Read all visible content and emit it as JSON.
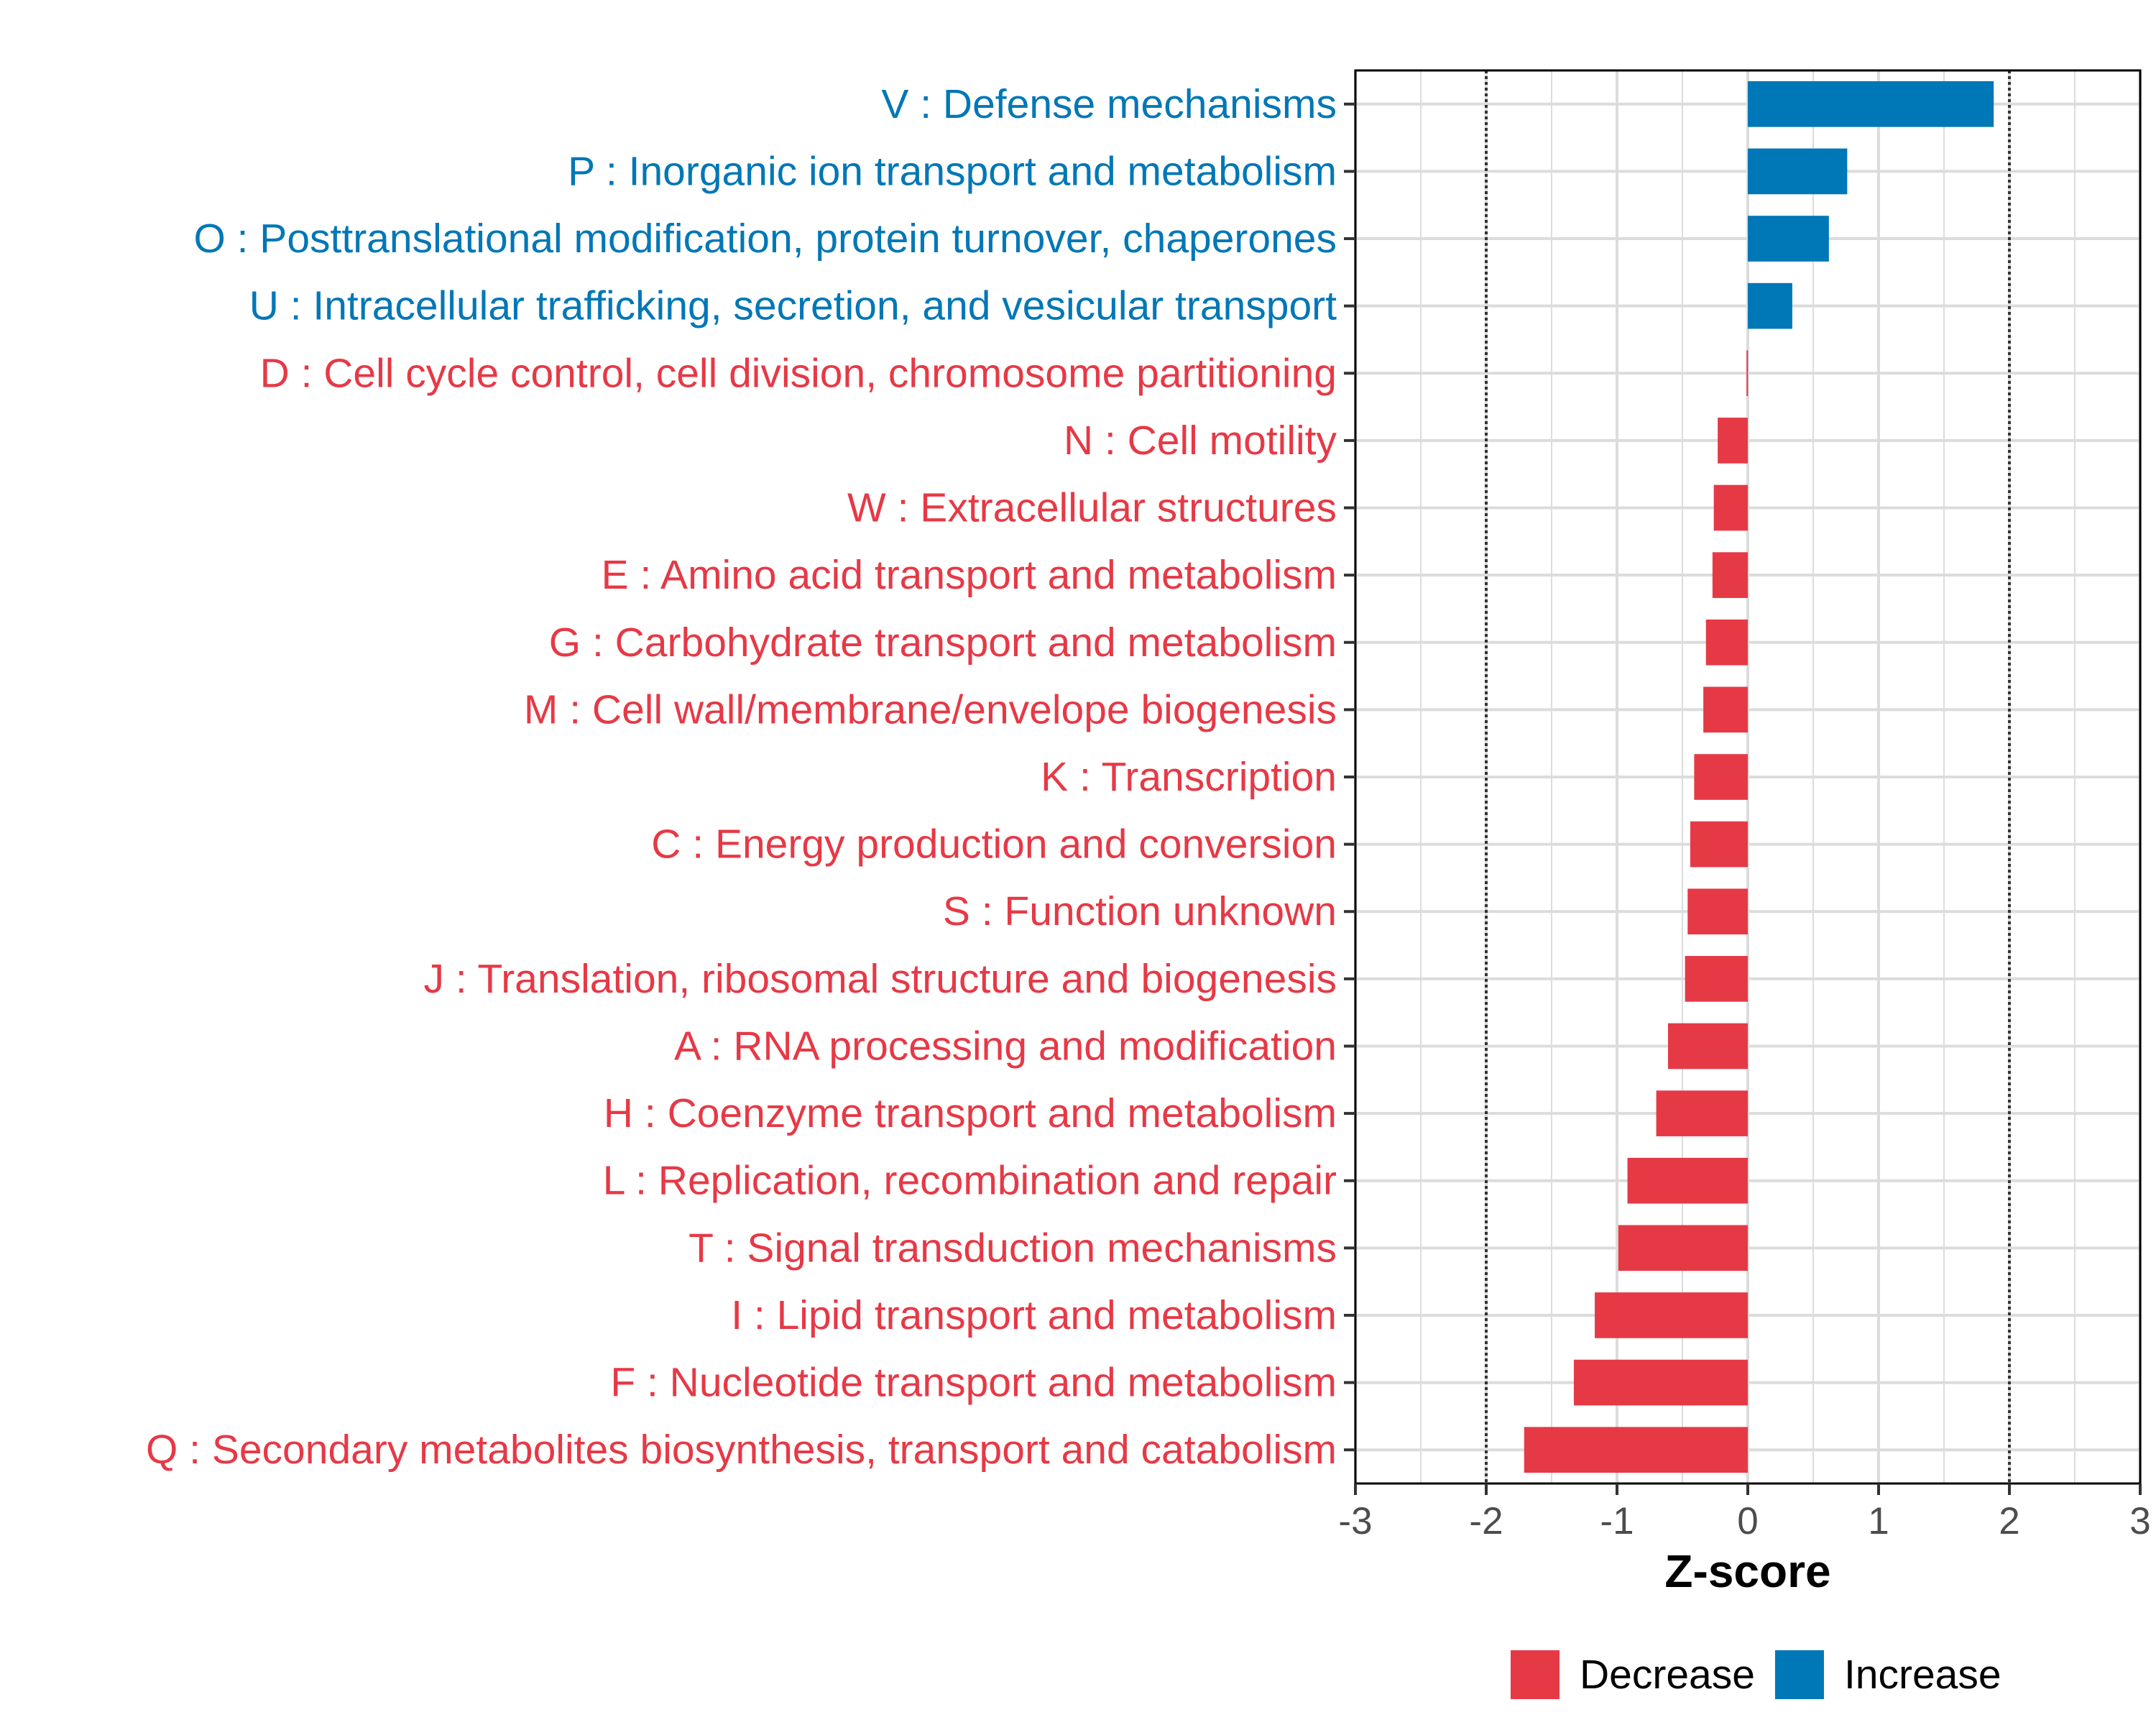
{
  "chart_data": {
    "type": "bar",
    "orientation": "horizontal",
    "xlabel": "Z-score",
    "xlim": [
      -3,
      3
    ],
    "xticks": [
      -3,
      -2,
      -1,
      0,
      1,
      2,
      3
    ],
    "threshold_lines": [
      -2,
      2
    ],
    "categories": [
      "V : Defense mechanisms",
      "P : Inorganic ion transport and metabolism",
      "O : Posttranslational modification, protein turnover, chaperones",
      "U : Intracellular trafficking, secretion, and vesicular transport",
      "D : Cell cycle control, cell division, chromosome partitioning",
      "N : Cell motility",
      "W : Extracellular structures",
      "E : Amino acid transport and metabolism",
      "G : Carbohydrate transport and metabolism",
      "M : Cell wall/membrane/envelope biogenesis",
      "K : Transcription",
      "C : Energy production and conversion",
      "S : Function unknown",
      "J : Translation, ribosomal structure and biogenesis",
      "A : RNA processing and modification",
      "H : Coenzyme transport and metabolism",
      "L : Replication, recombination and repair",
      "T : Signal transduction mechanisms",
      "I : Lipid transport and metabolism",
      "F : Nucleotide transport and metabolism",
      "Q : Secondary metabolites biosynthesis, transport and catabolism"
    ],
    "values": [
      1.88,
      0.76,
      0.62,
      0.34,
      -0.01,
      -0.23,
      -0.26,
      -0.27,
      -0.32,
      -0.34,
      -0.41,
      -0.44,
      -0.46,
      -0.48,
      -0.61,
      -0.7,
      -0.92,
      -0.99,
      -1.17,
      -1.33,
      -1.71
    ],
    "groups": [
      "Increase",
      "Increase",
      "Increase",
      "Increase",
      "Decrease",
      "Decrease",
      "Decrease",
      "Decrease",
      "Decrease",
      "Decrease",
      "Decrease",
      "Decrease",
      "Decrease",
      "Decrease",
      "Decrease",
      "Decrease",
      "Decrease",
      "Decrease",
      "Decrease",
      "Decrease",
      "Decrease"
    ],
    "legend": {
      "position": "bottom",
      "items": [
        {
          "label": "Decrease",
          "color": "#e63946"
        },
        {
          "label": "Increase",
          "color": "#0077b6"
        }
      ]
    },
    "colors": {
      "Decrease": "#e63946",
      "Increase": "#0077b6"
    }
  }
}
